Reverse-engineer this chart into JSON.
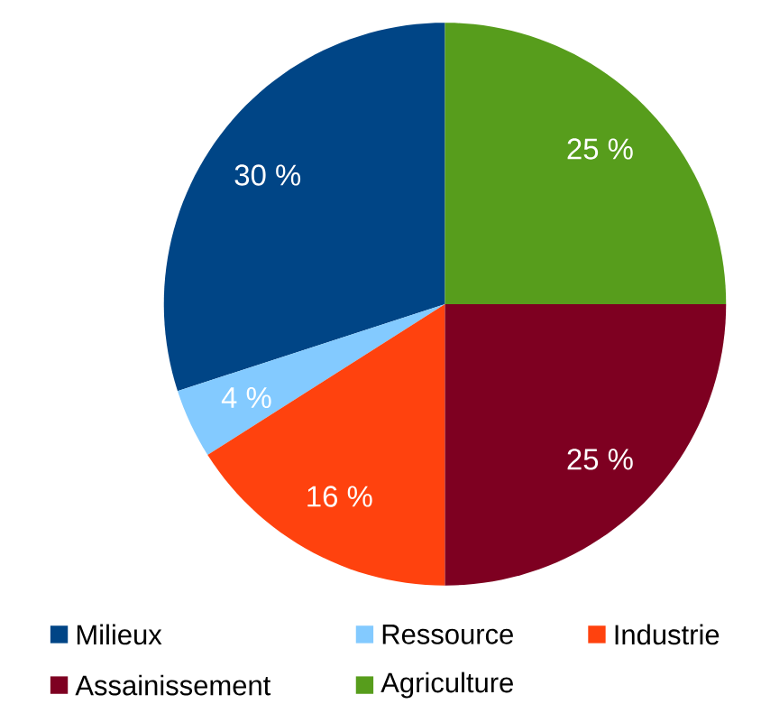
{
  "chart_data": {
    "type": "pie",
    "categories": [
      "Milieux",
      "Ressource",
      "Industrie",
      "Assainissement",
      "Agriculture"
    ],
    "values": [
      30,
      4,
      16,
      25,
      25
    ],
    "colors": [
      "#004586",
      "#83caff",
      "#ff420e",
      "#7e0021",
      "#579d1c"
    ],
    "value_labels": [
      "30 %",
      "4 %",
      "16 %",
      "25 %",
      "25 %"
    ],
    "legend": "bottom"
  }
}
